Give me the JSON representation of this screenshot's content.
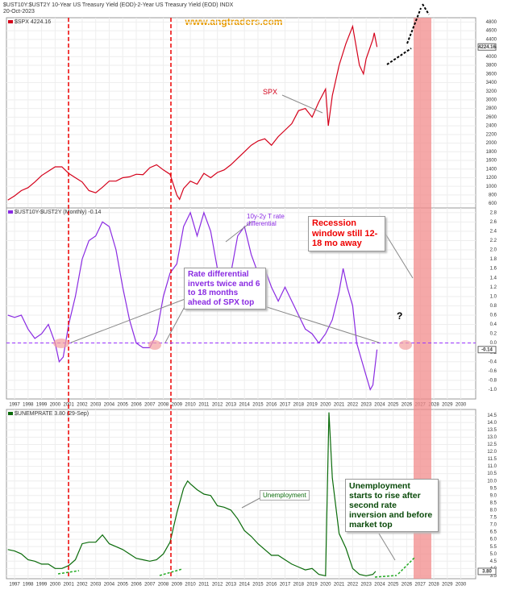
{
  "header": {
    "title": "$UST10Y:$UST2Y 10-Year US Treasury Yield (EOD)-2-Year US Treasury Yield (EOD) INDX",
    "date": "20-Oct-2023",
    "website": "www.angtraders.com"
  },
  "chart_data": [
    {
      "type": "line",
      "xlim": [
        1996.4,
        2031.1
      ],
      "xticks": [
        1997,
        1998,
        1999,
        2000,
        2001,
        2002,
        2003,
        2004,
        2005,
        2006,
        2007,
        2008,
        2009,
        2010,
        2011,
        2012,
        2013,
        2014,
        2015,
        2016,
        2017,
        2018,
        2019,
        2020,
        2021,
        2022,
        2023,
        2024,
        2025,
        2026,
        2027,
        2028,
        2029,
        2030
      ],
      "ylim": [
        500,
        4900
      ],
      "yticks": [
        600,
        800,
        1000,
        1200,
        1400,
        1600,
        1800,
        2000,
        2200,
        2400,
        2600,
        2800,
        3000,
        3200,
        3400,
        3600,
        3800,
        4000,
        4200,
        4400,
        4600,
        4800
      ],
      "x": [
        1996.5,
        1997,
        1997.5,
        1998,
        1998.5,
        1999,
        1999.5,
        2000,
        2000.5,
        2001,
        2001.5,
        2002,
        2002.5,
        2003,
        2003.5,
        2004,
        2004.5,
        2005,
        2005.5,
        2006,
        2006.5,
        2007,
        2007.5,
        2008,
        2008.5,
        2009,
        2009.2,
        2009.5,
        2010,
        2010.5,
        2011,
        2011.5,
        2012,
        2012.5,
        2013,
        2013.5,
        2014,
        2014.5,
        2015,
        2015.5,
        2016,
        2016.5,
        2017,
        2017.5,
        2018,
        2018.5,
        2019,
        2019.5,
        2020,
        2020.2,
        2020.5,
        2021,
        2021.5,
        2022,
        2022.5,
        2022.8,
        2023,
        2023.5,
        2023.6,
        2023.8
      ],
      "series": [
        {
          "name": "$SPX 4224.16",
          "color": "#d4001a",
          "values": [
            680,
            780,
            900,
            970,
            1100,
            1250,
            1350,
            1450,
            1450,
            1300,
            1200,
            1100,
            900,
            850,
            980,
            1120,
            1120,
            1200,
            1220,
            1280,
            1270,
            1430,
            1500,
            1380,
            1280,
            800,
            700,
            950,
            1120,
            1050,
            1300,
            1200,
            1320,
            1380,
            1500,
            1650,
            1800,
            1950,
            2050,
            2100,
            1950,
            2150,
            2300,
            2450,
            2750,
            2800,
            2600,
            2950,
            3250,
            2400,
            3100,
            3800,
            4300,
            4700,
            3800,
            3600,
            3950,
            4400,
            4550,
            4224.16
          ]
        }
      ],
      "last_value_label": "4224.16",
      "annotations": [
        "SPX"
      ]
    },
    {
      "type": "line",
      "xlim": [
        1996.4,
        2031.1
      ],
      "xticks": [
        1997,
        1998,
        1999,
        2000,
        2001,
        2002,
        2003,
        2004,
        2005,
        2006,
        2007,
        2008,
        2009,
        2010,
        2011,
        2012,
        2013,
        2014,
        2015,
        2016,
        2017,
        2018,
        2019,
        2020,
        2021,
        2022,
        2023,
        2024,
        2025,
        2026,
        2027,
        2028,
        2029,
        2030
      ],
      "ylim": [
        -1.2,
        2.9
      ],
      "yticks": [
        {
          "value": -1,
          "label": "-1.0"
        },
        -0.8,
        -0.6,
        -0.4,
        -0.2,
        {
          "value": 0,
          "label": "0.0"
        },
        0.2,
        0.4,
        0.6,
        0.8,
        {
          "value": 1,
          "label": "1.0"
        },
        1.2,
        1.4,
        1.6,
        1.8,
        {
          "value": 2,
          "label": "2.0"
        },
        2.2,
        2.4,
        2.6,
        2.8
      ],
      "x": [
        1996.5,
        1997,
        1997.5,
        1998,
        1998.5,
        1999,
        1999.5,
        2000,
        2000.3,
        2000.6,
        2001,
        2001.5,
        2002,
        2002.5,
        2003,
        2003.5,
        2004,
        2004.5,
        2005,
        2005.5,
        2006,
        2006.5,
        2007,
        2007.5,
        2008,
        2008.5,
        2009,
        2009.5,
        2010,
        2010.5,
        2011,
        2011.5,
        2012,
        2012.5,
        2013,
        2013.5,
        2014,
        2014.5,
        2015,
        2015.5,
        2016,
        2016.5,
        2017,
        2017.5,
        2018,
        2018.5,
        2019,
        2019.5,
        2020,
        2020.5,
        2021,
        2021.3,
        2021.6,
        2022,
        2022.3,
        2022.6,
        2023,
        2023.3,
        2023.5,
        2023.8
      ],
      "series": [
        {
          "name": "$UST10Y-$UST2Y (Monthly) -0.14",
          "color": "#8a2be2",
          "values": [
            0.6,
            0.55,
            0.6,
            0.3,
            0.1,
            0.2,
            0.4,
            0,
            -0.4,
            -0.3,
            0.4,
            1,
            1.8,
            2.2,
            2.3,
            2.6,
            2.5,
            2,
            1.2,
            0.5,
            0,
            -0.1,
            -0.1,
            0.2,
            1,
            1.5,
            1.7,
            2.5,
            2.8,
            2.3,
            2.8,
            2.4,
            1.6,
            1.4,
            1.5,
            2.3,
            2.5,
            1.9,
            1.5,
            1.6,
            1.2,
            0.9,
            1.2,
            0.9,
            0.6,
            0.3,
            0.2,
            0,
            0.2,
            0.5,
            1.1,
            1.6,
            1.2,
            0.8,
            0,
            -0.3,
            -0.7,
            -1,
            -0.9,
            -0.14
          ]
        }
      ],
      "last_value_label": "-0.14",
      "annotations": [
        "10y-2y T rate differential",
        "Recession window still 12-18 mo away",
        "Rate differential inverts twice and 6 to 18 months ahead of SPX top",
        "?"
      ]
    },
    {
      "type": "line",
      "xlim": [
        1996.4,
        2031.1
      ],
      "xticks": [
        1997,
        1998,
        1999,
        2000,
        2001,
        2002,
        2003,
        2004,
        2005,
        2006,
        2007,
        2008,
        2009,
        2010,
        2011,
        2012,
        2013,
        2014,
        2015,
        2016,
        2017,
        2018,
        2019,
        2020,
        2021,
        2022,
        2023,
        2024,
        2025,
        2026,
        2027,
        2028,
        2029,
        2030
      ],
      "ylim": [
        3.3,
        14.9
      ],
      "yticks": [
        3.5,
        {
          "value": 4,
          "label": "4.0"
        },
        4.5,
        {
          "value": 5,
          "label": "5.0"
        },
        5.5,
        {
          "value": 6,
          "label": "6.0"
        },
        6.5,
        {
          "value": 7,
          "label": "7.0"
        },
        7.5,
        {
          "value": 8,
          "label": "8.0"
        },
        8.5,
        {
          "value": 9,
          "label": "9.0"
        },
        9.5,
        {
          "value": 10,
          "label": "10.0"
        },
        10.5,
        {
          "value": 11,
          "label": "11.0"
        },
        11.5,
        {
          "value": 12,
          "label": "12.0"
        },
        12.5,
        {
          "value": 13,
          "label": "13.0"
        },
        13.5,
        {
          "value": 14,
          "label": "14.0"
        },
        14.5
      ],
      "x": [
        1996.5,
        1997,
        1997.5,
        1998,
        1998.5,
        1999,
        1999.5,
        2000,
        2000.5,
        2001,
        2001.5,
        2002,
        2002.5,
        2003,
        2003.5,
        2004,
        2004.5,
        2005,
        2005.5,
        2006,
        2006.5,
        2007,
        2007.5,
        2008,
        2008.5,
        2009,
        2009.5,
        2009.8,
        2010,
        2010.5,
        2011,
        2011.5,
        2012,
        2012.5,
        2013,
        2013.5,
        2014,
        2014.5,
        2015,
        2015.5,
        2016,
        2016.5,
        2017,
        2017.5,
        2018,
        2018.5,
        2019,
        2019.5,
        2020,
        2020.25,
        2020.5,
        2021,
        2021.5,
        2022,
        2022.5,
        2023,
        2023.5,
        2023.7
      ],
      "series": [
        {
          "name": "$UNEMPRATE 3.80 (29-Sep)",
          "color": "#0a6b0a",
          "values": [
            5.3,
            5.2,
            5,
            4.6,
            4.5,
            4.3,
            4.3,
            4,
            4,
            4.2,
            4.6,
            5.7,
            5.8,
            5.8,
            6.3,
            5.7,
            5.5,
            5.3,
            5,
            4.7,
            4.6,
            4.5,
            4.6,
            5,
            5.8,
            7.8,
            9.5,
            10,
            9.8,
            9.4,
            9.1,
            9,
            8.3,
            8.2,
            8,
            7.4,
            6.6,
            6.2,
            5.7,
            5.3,
            4.9,
            4.9,
            4.6,
            4.3,
            4.1,
            3.9,
            4,
            3.6,
            3.5,
            14.7,
            10.2,
            6.4,
            5.4,
            4,
            3.6,
            3.5,
            3.6,
            3.8
          ]
        }
      ],
      "last_value_label": "3.80",
      "annotations": [
        "Unemployment",
        "Unemployment starts to rise after second rate inversion and before market top"
      ]
    }
  ]
}
